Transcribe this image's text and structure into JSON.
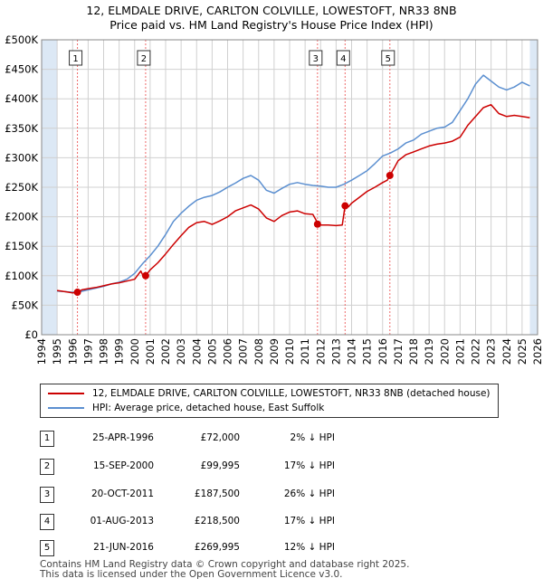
{
  "title_line1": "12, ELMDALE DRIVE, CARLTON COLVILLE, LOWESTOFT, NR33 8NB",
  "title_line2": "Price paid vs. HM Land Registry's House Price Index (HPI)",
  "colors": {
    "property": "#cc0000",
    "hpi": "#5b8fd0",
    "shade": "#dce8f5",
    "grid": "#d0d0d0",
    "vline": "#ee6a6a"
  },
  "legend": {
    "property_label": "12, ELMDALE DRIVE, CARLTON COLVILLE, LOWESTOFT, NR33 8NB (detached house)",
    "hpi_label": "HPI: Average price, detached house, East Suffolk"
  },
  "sales": [
    {
      "num": "1",
      "date": "25-APR-1996",
      "price": "£72,000",
      "hpi": "2% ↓ HPI"
    },
    {
      "num": "2",
      "date": "15-SEP-2000",
      "price": "£99,995",
      "hpi": "17% ↓ HPI"
    },
    {
      "num": "3",
      "date": "20-OCT-2011",
      "price": "£187,500",
      "hpi": "26% ↓ HPI"
    },
    {
      "num": "4",
      "date": "01-AUG-2013",
      "price": "£218,500",
      "hpi": "17% ↓ HPI"
    },
    {
      "num": "5",
      "date": "21-JUN-2016",
      "price": "£269,995",
      "hpi": "12% ↓ HPI"
    }
  ],
  "footer": {
    "line1": "Contains HM Land Registry data © Crown copyright and database right 2025.",
    "line2": "This data is licensed under the Open Government Licence v3.0."
  },
  "chart_data": {
    "type": "line",
    "xlim": [
      1994,
      2026
    ],
    "ylim": [
      0,
      500000
    ],
    "yticks": [
      0,
      50000,
      100000,
      150000,
      200000,
      250000,
      300000,
      350000,
      400000,
      450000,
      500000
    ],
    "ytick_labels": [
      "£0",
      "£50K",
      "£100K",
      "£150K",
      "£200K",
      "£250K",
      "£300K",
      "£350K",
      "£400K",
      "£450K",
      "£500K"
    ],
    "xticks": [
      1994,
      1995,
      1996,
      1997,
      1998,
      1999,
      2000,
      2001,
      2002,
      2003,
      2004,
      2005,
      2006,
      2007,
      2008,
      2009,
      2010,
      2011,
      2012,
      2013,
      2014,
      2015,
      2016,
      2017,
      2018,
      2019,
      2020,
      2021,
      2022,
      2023,
      2024,
      2025,
      2026
    ],
    "data_range": [
      1995.0,
      2025.5
    ],
    "series": [
      {
        "name": "12, ELMDALE DRIVE, CARLTON COLVILLE, LOWESTOFT, NR33 8NB (detached house)",
        "x": [
          1995.0,
          1995.5,
          1996.0,
          1996.31,
          1996.6,
          1997.0,
          1997.5,
          1998.0,
          1998.5,
          1999.0,
          1999.5,
          2000.0,
          2000.4,
          2000.6,
          2000.71,
          2001.0,
          2001.5,
          2002.0,
          2002.5,
          2003.0,
          2003.5,
          2004.0,
          2004.5,
          2005.0,
          2005.5,
          2006.0,
          2006.5,
          2007.0,
          2007.5,
          2008.0,
          2008.5,
          2009.0,
          2009.5,
          2010.0,
          2010.5,
          2011.0,
          2011.5,
          2011.8,
          2011.8,
          2012.0,
          2012.5,
          2013.0,
          2013.4,
          2013.58,
          2013.8,
          2014.0,
          2014.5,
          2015.0,
          2015.5,
          2016.0,
          2016.3,
          2016.47,
          2016.8,
          2017.0,
          2017.5,
          2018.0,
          2018.5,
          2019.0,
          2019.5,
          2020.0,
          2020.5,
          2021.0,
          2021.5,
          2022.0,
          2022.5,
          2023.0,
          2023.5,
          2024.0,
          2024.5,
          2025.0,
          2025.5
        ],
        "y": [
          75000,
          73000,
          71000,
          72000,
          76000,
          78000,
          80000,
          83000,
          86000,
          88000,
          91000,
          94000,
          108000,
          97000,
          99995,
          110000,
          122000,
          137000,
          153000,
          168000,
          182000,
          190000,
          192000,
          187000,
          193000,
          200000,
          210000,
          215000,
          220000,
          213000,
          198000,
          192000,
          202000,
          208000,
          210000,
          205000,
          204000,
          190000,
          187500,
          186000,
          186000,
          185000,
          186000,
          218500,
          217000,
          223000,
          233000,
          243000,
          250000,
          258000,
          262000,
          269995,
          285000,
          295000,
          305000,
          310000,
          315000,
          320000,
          323000,
          325000,
          328000,
          335000,
          355000,
          370000,
          385000,
          390000,
          375000,
          370000,
          372000,
          370000,
          368000
        ]
      },
      {
        "name": "HPI: Average price, detached house, East Suffolk",
        "x": [
          1995.0,
          1995.5,
          1996.0,
          1996.5,
          1997.0,
          1997.5,
          1998.0,
          1998.5,
          1999.0,
          1999.5,
          2000.0,
          2000.5,
          2001.0,
          2001.5,
          2002.0,
          2002.5,
          2003.0,
          2003.5,
          2004.0,
          2004.5,
          2005.0,
          2005.5,
          2006.0,
          2006.5,
          2007.0,
          2007.5,
          2008.0,
          2008.5,
          2009.0,
          2009.5,
          2010.0,
          2010.5,
          2011.0,
          2011.5,
          2012.0,
          2012.5,
          2013.0,
          2013.5,
          2014.0,
          2014.5,
          2015.0,
          2015.5,
          2016.0,
          2016.5,
          2017.0,
          2017.5,
          2018.0,
          2018.5,
          2019.0,
          2019.5,
          2020.0,
          2020.5,
          2021.0,
          2021.5,
          2022.0,
          2022.5,
          2023.0,
          2023.5,
          2024.0,
          2024.5,
          2025.0,
          2025.5
        ],
        "y": [
          74000,
          73000,
          72000,
          73000,
          76000,
          79000,
          82000,
          86000,
          89000,
          94000,
          104000,
          120000,
          134000,
          150000,
          170000,
          192000,
          206000,
          218000,
          228000,
          233000,
          236000,
          242000,
          250000,
          257000,
          265000,
          270000,
          262000,
          245000,
          240000,
          248000,
          255000,
          258000,
          255000,
          253000,
          252000,
          250000,
          250000,
          255000,
          262000,
          270000,
          278000,
          290000,
          303000,
          308000,
          315000,
          325000,
          330000,
          340000,
          345000,
          350000,
          352000,
          360000,
          380000,
          400000,
          425000,
          440000,
          430000,
          420000,
          415000,
          420000,
          428000,
          422000
        ]
      }
    ],
    "sales_points": [
      {
        "label": "1",
        "x": 1996.31,
        "y": 72000
      },
      {
        "label": "2",
        "x": 2000.71,
        "y": 99995
      },
      {
        "label": "3",
        "x": 2011.8,
        "y": 187500
      },
      {
        "label": "4",
        "x": 2013.58,
        "y": 218500
      },
      {
        "label": "5",
        "x": 2016.47,
        "y": 269995
      }
    ]
  }
}
